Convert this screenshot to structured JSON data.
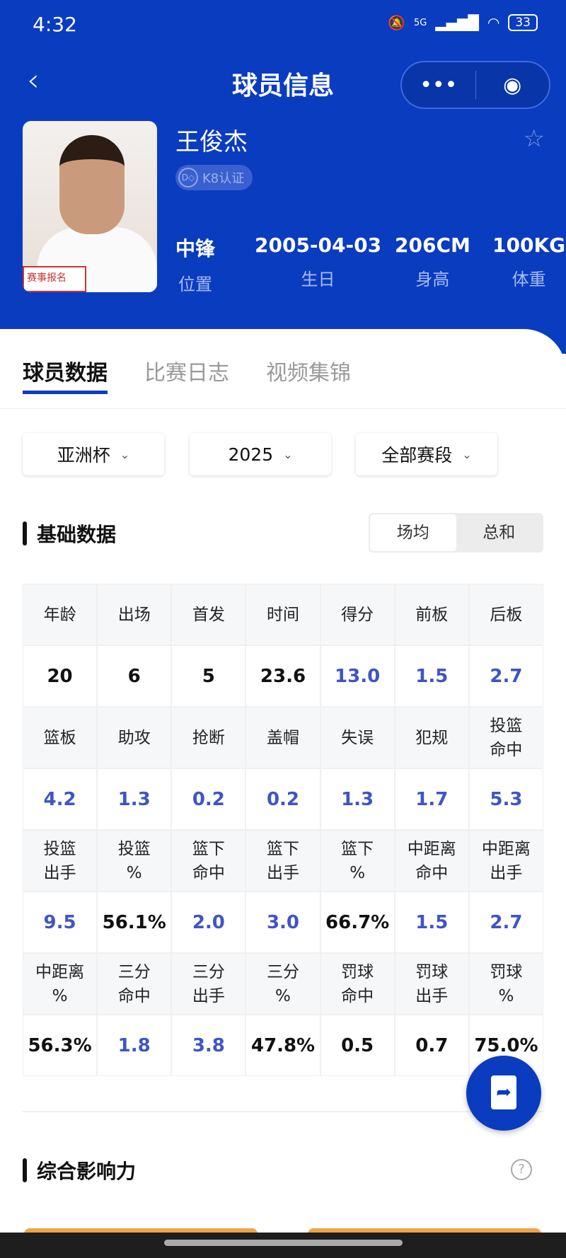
{
  "status": {
    "time": "4:32",
    "network": "5G",
    "battery": "33"
  },
  "header": {
    "title": "球员信息",
    "back_icon": "chevron-left-icon",
    "more_icon": "more-icon",
    "target_icon": "target-icon"
  },
  "player": {
    "name": "王俊杰",
    "badge": "K8认证",
    "photo_stamp": "赛事报名",
    "info": [
      {
        "value": "中锋",
        "label": "位置"
      },
      {
        "value": "2005-04-03",
        "label": "生日"
      },
      {
        "value": "206CM",
        "label": "身高"
      },
      {
        "value": "100KG",
        "label": "体重"
      }
    ]
  },
  "tabs": [
    "球员数据",
    "比赛日志",
    "视频集锦"
  ],
  "filters": [
    "亚洲杯",
    "2025",
    "全部赛段"
  ],
  "basic": {
    "title": "基础数据",
    "toggle": [
      "场均",
      "总和"
    ],
    "toggle_selected": "场均",
    "rows": [
      {
        "labels": [
          "年龄",
          "出场",
          "首发",
          "时间",
          "得分",
          "前板",
          "后板"
        ],
        "values": [
          "20",
          "6",
          "5",
          "23.6",
          "13.0",
          "1.5",
          "2.7"
        ],
        "blue": [
          false,
          false,
          false,
          false,
          true,
          true,
          true
        ]
      },
      {
        "labels": [
          "篮板",
          "助攻",
          "抢断",
          "盖帽",
          "失误",
          "犯规",
          "投篮\n命中"
        ],
        "values": [
          "4.2",
          "1.3",
          "0.2",
          "0.2",
          "1.3",
          "1.7",
          "5.3"
        ],
        "blue": [
          true,
          true,
          true,
          true,
          true,
          true,
          true
        ]
      },
      {
        "labels": [
          "投篮\n出手",
          "投篮\n%",
          "篮下\n命中",
          "篮下\n出手",
          "篮下\n%",
          "中距离\n命中",
          "中距离\n出手"
        ],
        "values": [
          "9.5",
          "56.1%",
          "2.0",
          "3.0",
          "66.7%",
          "1.5",
          "2.7"
        ],
        "blue": [
          true,
          false,
          true,
          true,
          false,
          true,
          true
        ]
      },
      {
        "labels": [
          "中距离\n%",
          "三分\n命中",
          "三分\n出手",
          "三分\n%",
          "罚球\n命中",
          "罚球\n出手",
          "罚球\n%"
        ],
        "values": [
          "56.3%",
          "1.8",
          "3.8",
          "47.8%",
          "0.5",
          "0.7",
          "75.0%"
        ],
        "blue": [
          false,
          true,
          true,
          false,
          false,
          false,
          false
        ]
      }
    ]
  },
  "impact": {
    "title": "综合影响力"
  },
  "colors": {
    "brand": "#0a3cc0",
    "value_blue": "#3f55c4",
    "accent_orange": "#f0a347"
  }
}
